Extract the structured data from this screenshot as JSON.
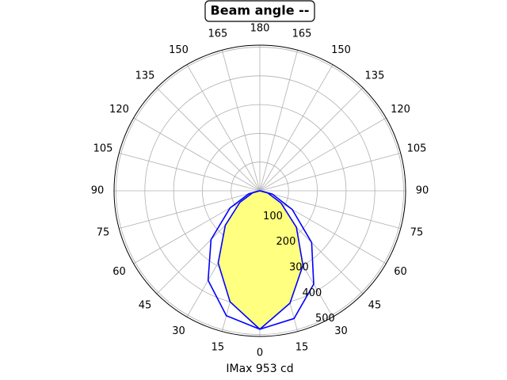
{
  "chart_data": {
    "type": "polar",
    "title": "Beam angle --",
    "xlabel": "IMax 953 cd",
    "rlim": [
      0,
      507
    ],
    "rticks": [
      100,
      200,
      300,
      400,
      500
    ],
    "thetaticks": [
      {
        "value": -165,
        "label": "165"
      },
      {
        "value": -150,
        "label": "150"
      },
      {
        "value": -135,
        "label": "135"
      },
      {
        "value": -120,
        "label": "120"
      },
      {
        "value": -105,
        "label": "105"
      },
      {
        "value": -90,
        "label": "90"
      },
      {
        "value": -75,
        "label": "75"
      },
      {
        "value": -60,
        "label": "60"
      },
      {
        "value": -45,
        "label": "45"
      },
      {
        "value": -30,
        "label": "30"
      },
      {
        "value": -15,
        "label": "15"
      },
      0,
      15,
      30,
      45,
      60,
      75,
      90,
      105,
      120,
      135,
      150,
      165,
      180
    ],
    "grid": true,
    "x": [
      -90,
      -75,
      -60,
      -45,
      -30,
      -15,
      0,
      15,
      30,
      45,
      60,
      75,
      90
    ],
    "series": [
      {
        "color": "#0000ff",
        "fill": "#ffff80",
        "values": [
          0,
          28,
          85,
          180,
          300,
          405,
          482,
          400,
          290,
          170,
          80,
          25,
          0
        ]
      },
      {
        "color": "#0000ff",
        "values": [
          0,
          45,
          130,
          255,
          375,
          460,
          482,
          450,
          360,
          240,
          120,
          40,
          0
        ]
      }
    ]
  }
}
